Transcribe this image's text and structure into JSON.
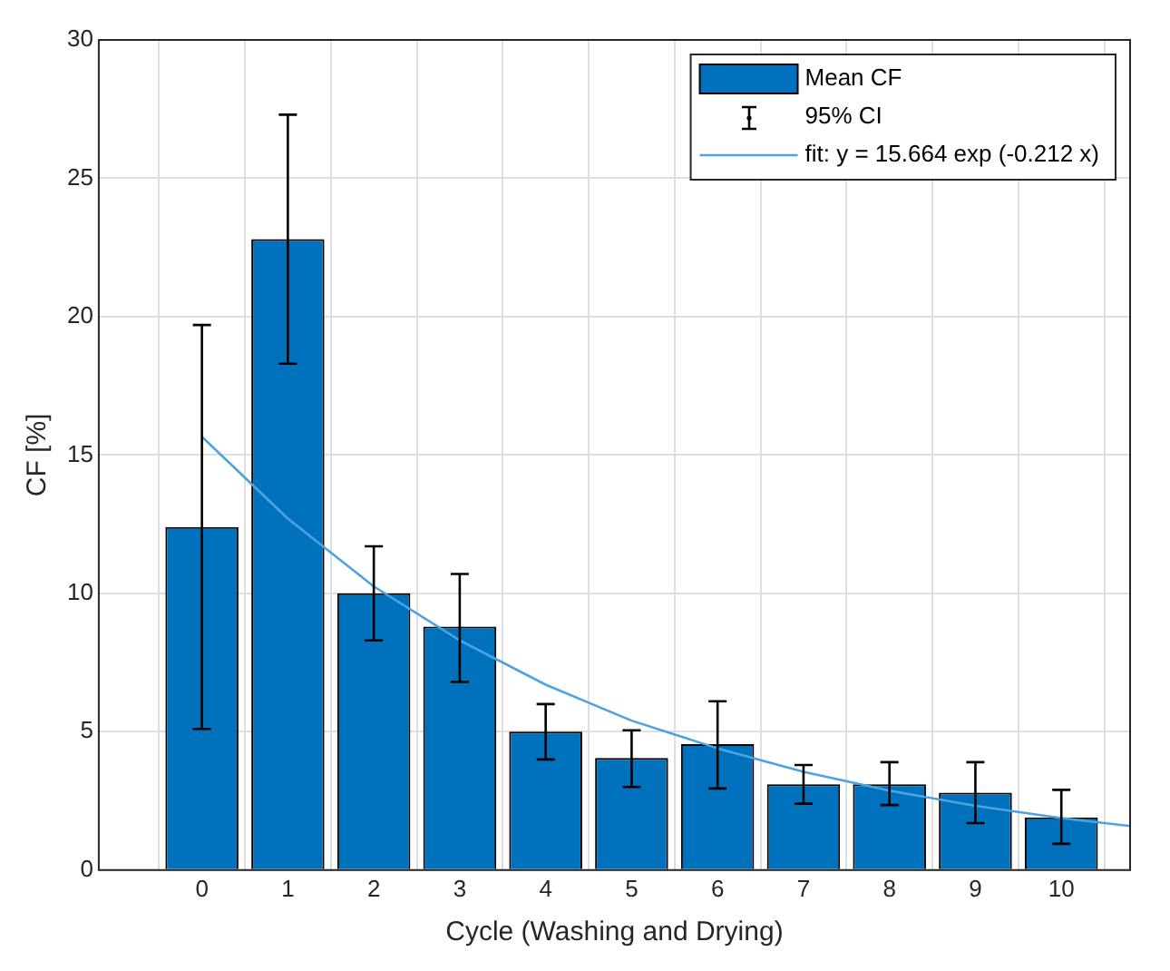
{
  "chart_data": {
    "type": "bar",
    "xlabel": "Cycle (Washing and Drying)",
    "ylabel": "CF [%]",
    "x": [
      0,
      1,
      2,
      3,
      4,
      5,
      6,
      7,
      8,
      9,
      10
    ],
    "series": [
      {
        "name": "Mean CF",
        "color": "#0072bd",
        "values": [
          12.4,
          22.8,
          10.0,
          8.8,
          5.0,
          4.05,
          4.55,
          3.1,
          3.1,
          2.8,
          1.9
        ],
        "errors": [
          [
            5.1,
            19.7
          ],
          [
            18.3,
            27.3
          ],
          [
            8.3,
            11.7
          ],
          [
            6.8,
            10.7
          ],
          [
            4.0,
            6.0
          ],
          [
            3.0,
            5.05
          ],
          [
            2.95,
            6.1
          ],
          [
            2.4,
            3.8
          ],
          [
            2.35,
            3.9
          ],
          [
            1.7,
            3.9
          ],
          [
            0.95,
            2.9
          ]
        ]
      },
      {
        "type": "line",
        "name": "fit: y = 15.664 exp (-0.212 x)",
        "color": "#4da3df",
        "x": [
          0,
          1,
          2,
          3,
          4,
          5,
          6,
          7,
          8,
          9,
          10,
          10.8
        ],
        "values": [
          15.66,
          12.7,
          10.25,
          8.3,
          6.7,
          5.4,
          4.4,
          3.55,
          2.87,
          2.32,
          1.88,
          1.59
        ]
      }
    ],
    "annotations": [
      "95% CI"
    ],
    "xlim": [
      -1.2,
      10.8
    ],
    "xticks": [
      0,
      1,
      2,
      3,
      4,
      5,
      6,
      7,
      8,
      9,
      10
    ],
    "ylim": [
      0,
      30
    ],
    "yticks": [
      0,
      5,
      10,
      15,
      20,
      25,
      30
    ],
    "grid": true,
    "legend": "top right",
    "marker": "none",
    "line_style": "solid"
  }
}
